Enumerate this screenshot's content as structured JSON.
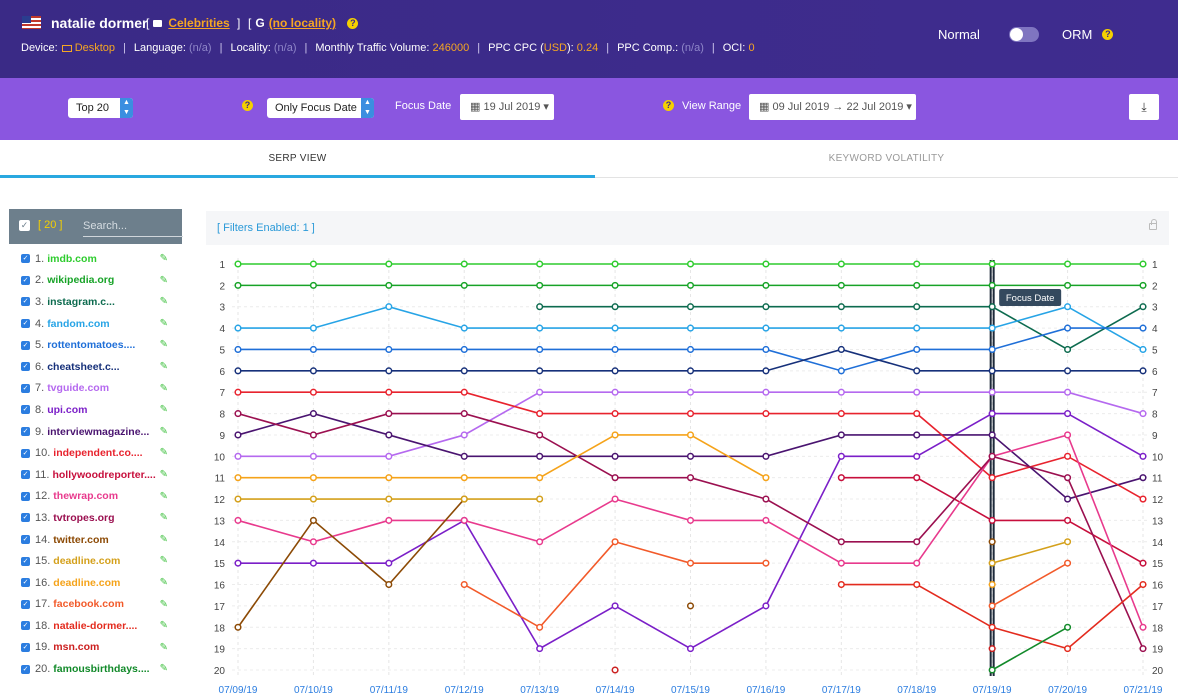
{
  "header": {
    "keyword": "natalie dormer",
    "category_label": "Celebrities",
    "locality_label": "(no locality)",
    "device_label": "Device:",
    "device_value": "Desktop",
    "language_label": "Language:",
    "language_value": "(n/a)",
    "locality_meta_label": "Locality:",
    "locality_meta_value": "(n/a)",
    "traffic_label": "Monthly Traffic Volume:",
    "traffic_value": "246000",
    "cpc_label_pre": "PPC CPC (",
    "cpc_currency": "USD",
    "cpc_label_post": "):",
    "cpc_value": "0.24",
    "comp_label": "PPC Comp.:",
    "comp_value": "(n/a)",
    "oci_label": "OCI:",
    "oci_value": "0",
    "mode_normal": "Normal",
    "mode_orm": "ORM"
  },
  "toolbar": {
    "top_select": "Top 20",
    "focus_select": "Only Focus Date",
    "focus_date_label": "Focus Date",
    "focus_date_value": "19 Jul 2019",
    "view_range_label": "View Range",
    "view_range_value": "09 Jul 2019 → 22 Jul 2019"
  },
  "tabs": [
    {
      "label": "SERP VIEW",
      "active": true
    },
    {
      "label": "KEYWORD VOLATILITY",
      "active": false
    }
  ],
  "sidebar": {
    "count": "[ 20 ]",
    "search_placeholder": "Search...",
    "items": [
      {
        "num": "1.",
        "domain": "imdb.com",
        "color": "#2ecc2e"
      },
      {
        "num": "2.",
        "domain": "wikipedia.org",
        "color": "#17a327"
      },
      {
        "num": "3.",
        "domain": "instagram.c...",
        "color": "#0d6b4f"
      },
      {
        "num": "4.",
        "domain": "fandom.com",
        "color": "#27a4e6"
      },
      {
        "num": "5.",
        "domain": "rottentomatoes....",
        "color": "#1f6fd8"
      },
      {
        "num": "6.",
        "domain": "cheatsheet.c...",
        "color": "#16307a"
      },
      {
        "num": "7.",
        "domain": "tvguide.com",
        "color": "#b569ef"
      },
      {
        "num": "8.",
        "domain": "upi.com",
        "color": "#7b1fc8"
      },
      {
        "num": "9.",
        "domain": "interviewmagazine...",
        "color": "#4a1470"
      },
      {
        "num": "10.",
        "domain": "independent.co....",
        "color": "#e8232e"
      },
      {
        "num": "11.",
        "domain": "hollywoodreporter....",
        "color": "#c70f3c"
      },
      {
        "num": "12.",
        "domain": "thewrap.com",
        "color": "#e83a8d"
      },
      {
        "num": "13.",
        "domain": "tvtropes.org",
        "color": "#9b1050"
      },
      {
        "num": "14.",
        "domain": "twitter.com",
        "color": "#8c4a05"
      },
      {
        "num": "15.",
        "domain": "deadline.com",
        "color": "#d4a01b"
      },
      {
        "num": "16.",
        "domain": "deadline.com",
        "color": "#f5a31a"
      },
      {
        "num": "17.",
        "domain": "facebook.com",
        "color": "#f25a2a"
      },
      {
        "num": "18.",
        "domain": "natalie-dormer....",
        "color": "#e32b1e"
      },
      {
        "num": "19.",
        "domain": "msn.com",
        "color": "#cc2020"
      },
      {
        "num": "20.",
        "domain": "famousbirthdays....",
        "color": "#128a2a"
      }
    ]
  },
  "chart": {
    "filters_label": "[ Filters Enabled: 1 ]",
    "focus_tooltip": "Focus Date"
  },
  "chart_data": {
    "type": "line",
    "x": [
      "07/09/19",
      "07/10/19",
      "07/11/19",
      "07/12/19",
      "07/13/19",
      "07/14/19",
      "07/15/19",
      "07/16/19",
      "07/17/19",
      "07/18/19",
      "07/19/19",
      "07/20/19",
      "07/21/19"
    ],
    "y_ticks": [
      1,
      2,
      3,
      4,
      5,
      6,
      7,
      8,
      9,
      10,
      11,
      12,
      13,
      14,
      15,
      16,
      17,
      18,
      19,
      20
    ],
    "ylim": [
      1,
      20
    ],
    "y_inverted": true,
    "focus_x": "07/19/19",
    "series": [
      {
        "color": "#2ecc2e",
        "values": [
          1,
          1,
          1,
          1,
          1,
          1,
          1,
          1,
          1,
          1,
          1,
          1,
          1
        ]
      },
      {
        "color": "#17a327",
        "values": [
          2,
          2,
          2,
          2,
          2,
          2,
          2,
          2,
          2,
          2,
          2,
          2,
          2
        ]
      },
      {
        "color": "#0d6b4f",
        "values": [
          null,
          null,
          null,
          null,
          3,
          3,
          3,
          3,
          3,
          3,
          3,
          5,
          3
        ]
      },
      {
        "color": "#27a4e6",
        "values": [
          4,
          4,
          3,
          4,
          4,
          4,
          4,
          4,
          4,
          4,
          4,
          3,
          5
        ]
      },
      {
        "color": "#1f6fd8",
        "values": [
          5,
          5,
          5,
          5,
          5,
          5,
          5,
          5,
          6,
          5,
          5,
          4,
          4
        ]
      },
      {
        "color": "#16307a",
        "values": [
          6,
          6,
          6,
          6,
          6,
          6,
          6,
          6,
          5,
          6,
          6,
          6,
          6
        ]
      },
      {
        "color": "#b569ef",
        "values": [
          10,
          10,
          10,
          9,
          7,
          7,
          7,
          7,
          7,
          7,
          7,
          7,
          8
        ]
      },
      {
        "color": "#7b1fc8",
        "values": [
          15,
          15,
          15,
          13,
          19,
          17,
          19,
          17,
          10,
          10,
          8,
          8,
          10
        ]
      },
      {
        "color": "#4a1470",
        "values": [
          9,
          8,
          9,
          10,
          10,
          10,
          10,
          10,
          9,
          9,
          9,
          12,
          11
        ]
      },
      {
        "color": "#e8232e",
        "values": [
          7,
          7,
          7,
          7,
          8,
          8,
          8,
          8,
          8,
          8,
          11,
          10,
          12
        ]
      },
      {
        "color": "#c70f3c",
        "values": [
          null,
          null,
          null,
          null,
          null,
          null,
          null,
          null,
          11,
          11,
          13,
          13,
          15
        ]
      },
      {
        "color": "#e83a8d",
        "values": [
          13,
          14,
          13,
          13,
          14,
          12,
          13,
          13,
          15,
          15,
          10,
          9,
          18
        ]
      },
      {
        "color": "#9b1050",
        "values": [
          8,
          9,
          8,
          8,
          9,
          11,
          11,
          12,
          14,
          14,
          10,
          11,
          19
        ]
      },
      {
        "color": "#8c4a05",
        "values": [
          18,
          13,
          16,
          12,
          null,
          null,
          17,
          null,
          null,
          null,
          14,
          null,
          null
        ]
      },
      {
        "color": "#d4a01b",
        "values": [
          12,
          12,
          12,
          12,
          12,
          null,
          null,
          null,
          null,
          null,
          15,
          14,
          null
        ]
      },
      {
        "color": "#f5a31a",
        "values": [
          11,
          11,
          11,
          11,
          11,
          9,
          9,
          11,
          null,
          null,
          16,
          null,
          null
        ]
      },
      {
        "color": "#f25a2a",
        "values": [
          null,
          null,
          null,
          16,
          18,
          14,
          15,
          15,
          null,
          null,
          17,
          15,
          null
        ]
      },
      {
        "color": "#e32b1e",
        "values": [
          null,
          null,
          null,
          null,
          null,
          null,
          null,
          null,
          16,
          16,
          18,
          19,
          16
        ]
      },
      {
        "color": "#cc2020",
        "values": [
          null,
          null,
          null,
          null,
          null,
          20,
          null,
          null,
          null,
          null,
          19,
          null,
          null
        ]
      },
      {
        "color": "#128a2a",
        "values": [
          null,
          null,
          null,
          null,
          null,
          null,
          null,
          null,
          null,
          null,
          20,
          18,
          null
        ]
      }
    ]
  }
}
